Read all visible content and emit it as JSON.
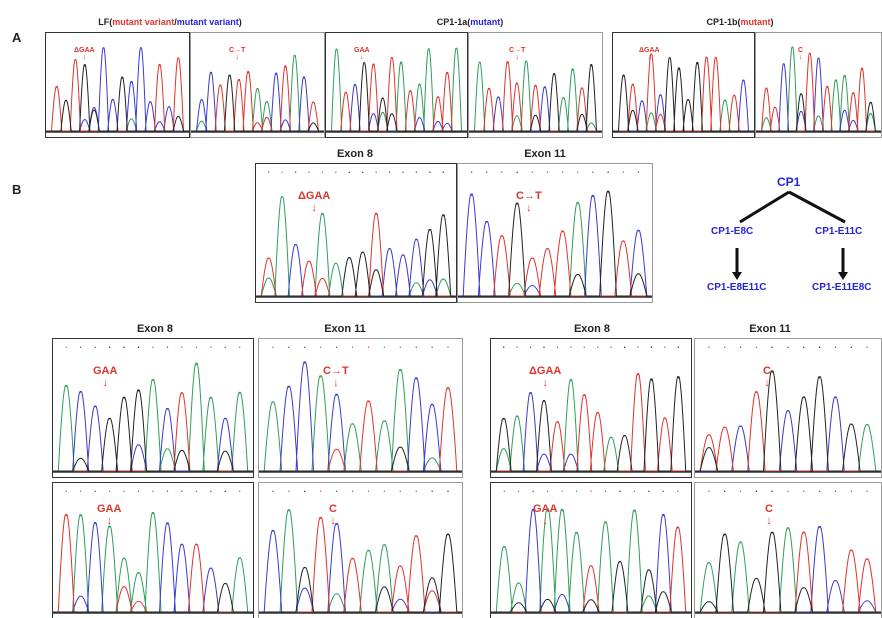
{
  "panel_labels": {
    "a": "A",
    "b": "B"
  },
  "section_a": {
    "titles": [
      {
        "prefix": "LF(",
        "red": "mutant variant",
        "sep": "/",
        "blue": "mutant variant",
        "suffix": ")"
      },
      {
        "prefix": "CP1-1a(",
        "red": "",
        "sep": "",
        "blue": "mutant",
        "suffix": ")"
      },
      {
        "prefix": "CP1-1b(",
        "red": "mutant",
        "sep": "",
        "blue": "",
        "suffix": ")"
      }
    ],
    "annotations": [
      "ΔGAA",
      "C→T",
      "GAA",
      "C→T",
      "ΔGAA",
      "C"
    ]
  },
  "section_b_top": {
    "exon_labels": [
      "Exon 8",
      "Exon 11"
    ],
    "annotations": [
      "ΔGAA",
      "C→T"
    ]
  },
  "lineage_tree": {
    "root": "CP1",
    "left_child": "CP1-E8C",
    "right_child": "CP1-E11C",
    "left_grandchild": "CP1-E8E11C",
    "right_grandchild": "CP1-E11E8C"
  },
  "section_b_bottom": {
    "exon_labels": [
      "Exon 8",
      "Exon 11",
      "Exon 8",
      "Exon 11"
    ],
    "annotations_row1": [
      "GAA",
      "C→T",
      "ΔGAA",
      "C"
    ],
    "annotations_row2": [
      "GAA",
      "C",
      "GAA",
      "C"
    ]
  },
  "colors": {
    "green": "#2f9e5a",
    "blue": "#3a3ad0",
    "red": "#e0342c",
    "black": "#222222",
    "annotation": "#e0342c",
    "tree": "#2424d8"
  }
}
